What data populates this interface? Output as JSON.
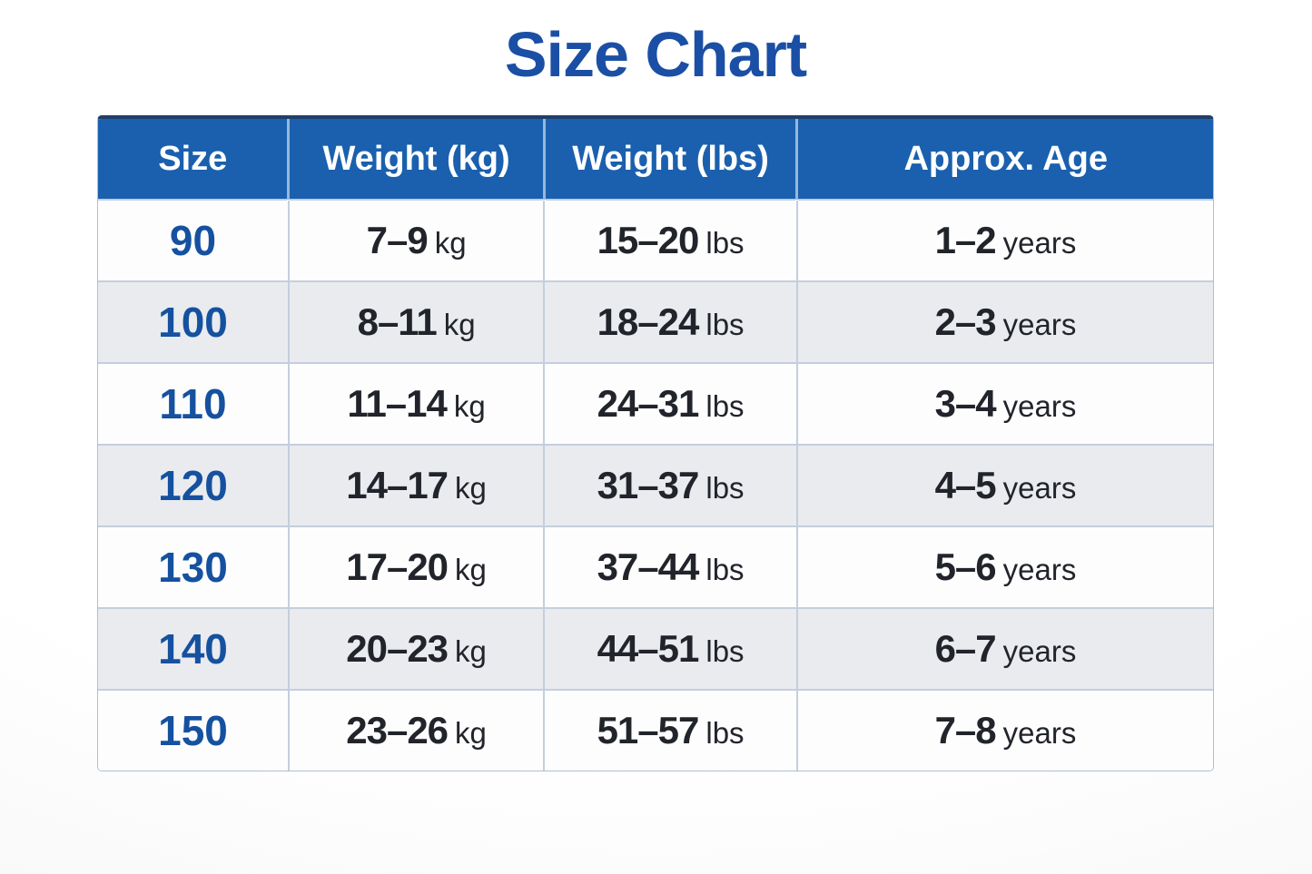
{
  "chart_data": {
    "type": "table",
    "title": "Size Chart",
    "columns": [
      "Size",
      "Weight (kg)",
      "Weight (lbs)",
      "Approx. Age"
    ],
    "rows": [
      {
        "size": "90",
        "kg": "7–9",
        "kg_unit": "kg",
        "lbs": "15–20",
        "lbs_unit": "lbs",
        "age": "1–2",
        "age_unit": "years"
      },
      {
        "size": "100",
        "kg": "8–11",
        "kg_unit": "kg",
        "lbs": "18–24",
        "lbs_unit": "lbs",
        "age": "2–3",
        "age_unit": "years"
      },
      {
        "size": "110",
        "kg": "11–14",
        "kg_unit": "kg",
        "lbs": "24–31",
        "lbs_unit": "lbs",
        "age": "3–4",
        "age_unit": "years"
      },
      {
        "size": "120",
        "kg": "14–17",
        "kg_unit": "kg",
        "lbs": "31–37",
        "lbs_unit": "lbs",
        "age": "4–5",
        "age_unit": "years"
      },
      {
        "size": "130",
        "kg": "17–20",
        "kg_unit": "kg",
        "lbs": "37–44",
        "lbs_unit": "lbs",
        "age": "5–6",
        "age_unit": "years"
      },
      {
        "size": "140",
        "kg": "20–23",
        "kg_unit": "kg",
        "lbs": "44–51",
        "lbs_unit": "lbs",
        "age": "6–7",
        "age_unit": "years"
      },
      {
        "size": "150",
        "kg": "23–26",
        "kg_unit": "kg",
        "lbs": "51–57",
        "lbs_unit": "lbs",
        "age": "7–8",
        "age_unit": "years"
      }
    ]
  },
  "colors": {
    "title": "#1b4fa5",
    "header_bg": "#1a60ae",
    "header_text": "#ffffff",
    "header_top_border": "#223f69",
    "size_text": "#15519f",
    "body_text": "#21242a",
    "row_bg": "#fdfdfe",
    "row_alt_bg": "#e9ebef",
    "border": "#c4cedd",
    "outer_border": "#b3bdcc"
  }
}
